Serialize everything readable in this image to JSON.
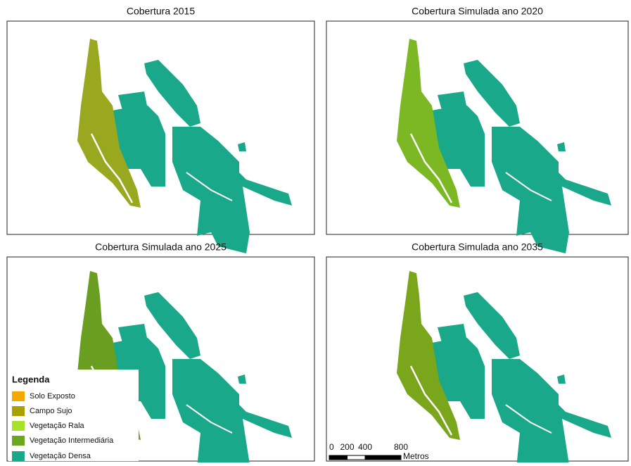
{
  "panels": [
    {
      "title": "Cobertura 2015"
    },
    {
      "title": "Cobertura Simulada ano 2020"
    },
    {
      "title": "Cobertura Simulada ano 2025"
    },
    {
      "title": "Cobertura Simulada ano 2035"
    }
  ],
  "legend": {
    "title": "Legenda",
    "items": [
      {
        "label": "Solo Exposto",
        "color": "#f5a800"
      },
      {
        "label": "Campo Sujo",
        "color": "#a8a000"
      },
      {
        "label": "Vegetação Rala",
        "color": "#a6e22a"
      },
      {
        "label": "Vegetação Intermediária",
        "color": "#6aa61e"
      },
      {
        "label": "Vegetação Densa",
        "color": "#1aa88a"
      }
    ]
  },
  "scale_bar": {
    "ticks": [
      0,
      200,
      400,
      800
    ],
    "unit": "Metros"
  }
}
